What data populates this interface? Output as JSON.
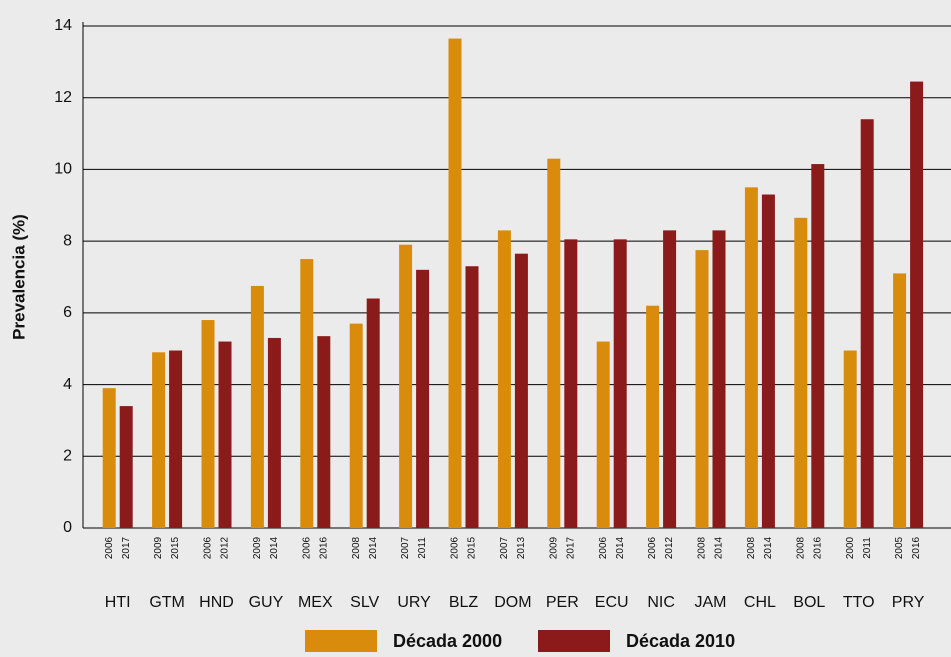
{
  "chart_data": {
    "type": "bar",
    "ylabel": "Prevalencia (%)",
    "categories": [
      "HTI",
      "GTM",
      "HND",
      "GUY",
      "MEX",
      "SLV",
      "URY",
      "BLZ",
      "DOM",
      "PER",
      "ECU",
      "NIC",
      "JAM",
      "CHL",
      "BOL",
      "TTO",
      "PRY"
    ],
    "series": [
      {
        "name": "Década 2000",
        "color": "#d98c0c",
        "values": [
          3.9,
          4.9,
          5.8,
          6.75,
          7.5,
          5.7,
          7.9,
          13.65,
          8.3,
          10.3,
          5.2,
          6.2,
          7.75,
          9.5,
          8.65,
          4.95,
          7.1
        ],
        "years": [
          "2006",
          "2009",
          "2006",
          "2009",
          "2006",
          "2008",
          "2007",
          "2006",
          "2007",
          "2009",
          "2006",
          "2006",
          "2008",
          "2008",
          "2008",
          "2000",
          "2005"
        ]
      },
      {
        "name": "Década 2010",
        "color": "#8b1a1a",
        "values": [
          3.4,
          4.95,
          5.2,
          5.3,
          5.35,
          6.4,
          7.2,
          7.3,
          7.65,
          8.05,
          8.05,
          8.3,
          8.3,
          9.3,
          10.15,
          11.4,
          12.45
        ],
        "years": [
          "2017",
          "2015",
          "2012",
          "2014",
          "2016",
          "2014",
          "2011",
          "2015",
          "2013",
          "2017",
          "2014",
          "2012",
          "2014",
          "2014",
          "2016",
          "2011",
          "2016"
        ]
      }
    ],
    "ylim": [
      0,
      14
    ],
    "yticks": [
      0,
      2,
      4,
      6,
      8,
      10,
      12,
      14
    ],
    "grid": true
  }
}
